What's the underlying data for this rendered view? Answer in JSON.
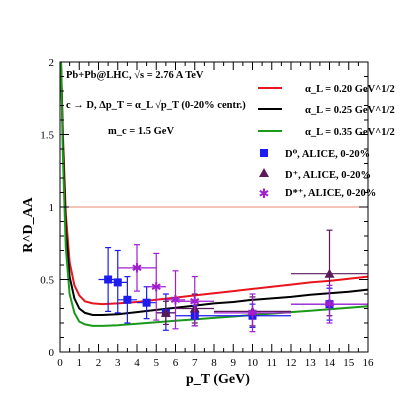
{
  "annotations": [
    "Pb+Pb@LHC, √s = 2.76 A TeV",
    "c → D, Δp_T = α_L √p_T  (0-20% centr.)",
    "m_c = 1.5 GeV"
  ],
  "colors": {
    "red": "#e8141e",
    "black": "#000000",
    "green": "#1a9a1a",
    "blue": "#1c1cf0",
    "purple": "#5a1a5a",
    "magenta": "#a020d0",
    "refline": "#e88870"
  },
  "chart_data": {
    "type": "line",
    "xlabel": "p_T (GeV)",
    "ylabel": "R^D_AA",
    "xlim": [
      0,
      16
    ],
    "ylim": [
      0,
      2
    ],
    "xticks": [
      0,
      1,
      2,
      3,
      4,
      5,
      6,
      7,
      8,
      9,
      10,
      11,
      12,
      13,
      14,
      15,
      16
    ],
    "yticks": [
      0,
      0.5,
      1,
      1.5,
      2
    ],
    "reference_line": 1.0,
    "legend_position": "top-right",
    "series": [
      {
        "name": "α_L = 0.20 GeV^1/2",
        "kind": "line",
        "color": "red",
        "x": [
          0.05,
          0.15,
          0.3,
          0.5,
          0.75,
          1.0,
          1.3,
          1.7,
          2.2,
          3,
          4,
          5,
          6,
          7,
          8,
          9,
          10,
          11,
          12,
          13,
          14,
          15,
          16
        ],
        "y": [
          2.0,
          1.5,
          0.95,
          0.62,
          0.46,
          0.39,
          0.35,
          0.335,
          0.33,
          0.335,
          0.345,
          0.36,
          0.375,
          0.39,
          0.405,
          0.42,
          0.435,
          0.45,
          0.465,
          0.48,
          0.49,
          0.505,
          0.52
        ]
      },
      {
        "name": "α_L = 0.25 GeV^1/2",
        "kind": "line",
        "color": "black",
        "x": [
          0.05,
          0.15,
          0.3,
          0.5,
          0.75,
          1.0,
          1.3,
          1.7,
          2.2,
          3,
          4,
          5,
          6,
          7,
          8,
          9,
          10,
          11,
          12,
          13,
          14,
          15,
          16
        ],
        "y": [
          2.0,
          1.45,
          0.85,
          0.52,
          0.37,
          0.3,
          0.27,
          0.255,
          0.255,
          0.26,
          0.275,
          0.29,
          0.305,
          0.32,
          0.335,
          0.345,
          0.36,
          0.37,
          0.38,
          0.395,
          0.405,
          0.415,
          0.43
        ]
      },
      {
        "name": "α_L = 0.35 GeV^1/2",
        "kind": "line",
        "color": "green",
        "x": [
          0.05,
          0.15,
          0.3,
          0.5,
          0.75,
          1.0,
          1.3,
          1.7,
          2.2,
          3,
          4,
          5,
          6,
          7,
          8,
          9,
          10,
          11,
          12,
          13,
          14,
          15,
          16
        ],
        "y": [
          2.0,
          1.35,
          0.72,
          0.4,
          0.27,
          0.21,
          0.19,
          0.18,
          0.18,
          0.185,
          0.195,
          0.205,
          0.215,
          0.225,
          0.235,
          0.245,
          0.255,
          0.265,
          0.275,
          0.285,
          0.295,
          0.305,
          0.315
        ]
      },
      {
        "name": "D⁰, ALICE, 0-20%",
        "kind": "points",
        "marker": "square",
        "color": "blue",
        "points": [
          {
            "x": 2.5,
            "y": 0.5,
            "xlo": 2.0,
            "xhi": 3.0,
            "ylo": 0.28,
            "yhi": 0.72
          },
          {
            "x": 3.0,
            "y": 0.48,
            "xlo": 2.5,
            "xhi": 3.5,
            "ylo": 0.27,
            "yhi": 0.7
          },
          {
            "x": 3.5,
            "y": 0.36,
            "xlo": 3.0,
            "xhi": 4.0,
            "ylo": 0.2,
            "yhi": 0.52
          },
          {
            "x": 4.5,
            "y": 0.34,
            "xlo": 4.0,
            "xhi": 5.0,
            "ylo": 0.23,
            "yhi": 0.45
          },
          {
            "x": 5.5,
            "y": 0.27,
            "xlo": 5.0,
            "xhi": 6.0,
            "ylo": 0.15,
            "yhi": 0.4
          },
          {
            "x": 7.0,
            "y": 0.25,
            "xlo": 6.0,
            "xhi": 8.0,
            "ylo": 0.18,
            "yhi": 0.32
          },
          {
            "x": 10.0,
            "y": 0.25,
            "xlo": 8.0,
            "xhi": 12.0,
            "ylo": 0.17,
            "yhi": 0.33
          },
          {
            "x": 14.0,
            "y": 0.33,
            "xlo": 12.0,
            "xhi": 16.0,
            "ylo": 0.22,
            "yhi": 0.44
          }
        ]
      },
      {
        "name": "D⁺, ALICE, 0-20%",
        "kind": "points",
        "marker": "triangle",
        "color": "purple",
        "points": [
          {
            "x": 5.5,
            "y": 0.27,
            "xlo": 5.0,
            "xhi": 6.0,
            "ylo": 0.19,
            "yhi": 0.35
          },
          {
            "x": 7.0,
            "y": 0.3,
            "xlo": 6.0,
            "xhi": 8.0,
            "ylo": 0.2,
            "yhi": 0.4
          },
          {
            "x": 10.0,
            "y": 0.28,
            "xlo": 8.0,
            "xhi": 12.0,
            "ylo": 0.18,
            "yhi": 0.38
          },
          {
            "x": 14.0,
            "y": 0.54,
            "xlo": 12.0,
            "xhi": 16.0,
            "ylo": 0.25,
            "yhi": 0.84
          }
        ]
      },
      {
        "name": "D*⁺, ALICE, 0-20%",
        "kind": "points",
        "marker": "star",
        "color": "magenta",
        "points": [
          {
            "x": 4.0,
            "y": 0.58,
            "xlo": 3.0,
            "xhi": 5.0,
            "ylo": 0.42,
            "yhi": 0.74
          },
          {
            "x": 5.0,
            "y": 0.45,
            "xlo": 4.5,
            "xhi": 5.5,
            "ylo": 0.22,
            "yhi": 0.68
          },
          {
            "x": 6.0,
            "y": 0.36,
            "xlo": 5.5,
            "xhi": 6.5,
            "ylo": 0.16,
            "yhi": 0.56
          },
          {
            "x": 7.0,
            "y": 0.35,
            "xlo": 6.0,
            "xhi": 8.0,
            "ylo": 0.18,
            "yhi": 0.52
          },
          {
            "x": 10.0,
            "y": 0.27,
            "xlo": 8.0,
            "xhi": 12.0,
            "ylo": 0.14,
            "yhi": 0.4
          },
          {
            "x": 14.0,
            "y": 0.33,
            "xlo": 12.0,
            "xhi": 16.0,
            "ylo": 0.2,
            "yhi": 0.46
          }
        ]
      }
    ]
  }
}
